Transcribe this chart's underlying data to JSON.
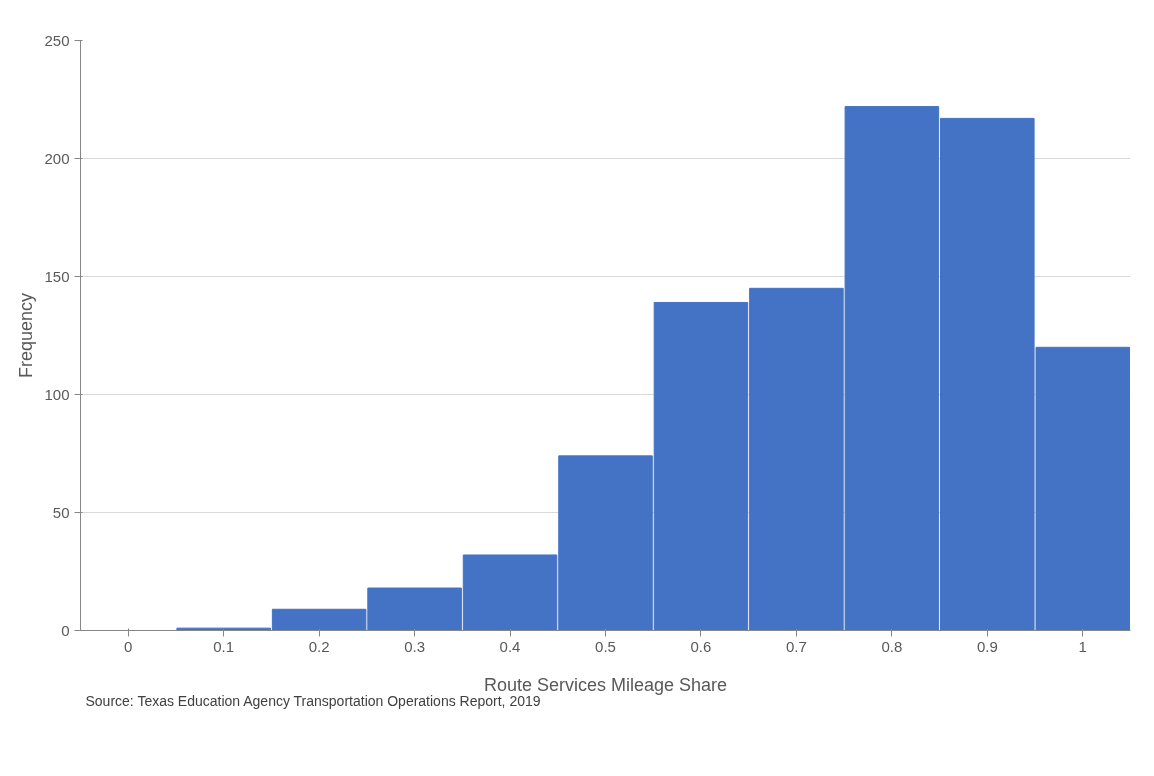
{
  "chart_data": {
    "type": "bar",
    "categories": [
      "0",
      "0.1",
      "0.2",
      "0.3",
      "0.4",
      "0.5",
      "0.6",
      "0.7",
      "0.8",
      "0.9",
      "1"
    ],
    "values": [
      0,
      1,
      9,
      18,
      32,
      74,
      139,
      145,
      222,
      217,
      120
    ],
    "color": "#4472c4",
    "xlabel": "Route Services Mileage Share",
    "ylabel": "Frequency",
    "ylim": [
      0,
      250
    ],
    "yticks": [
      0,
      50,
      100,
      150,
      200,
      250
    ],
    "grid": "y",
    "annotations": [
      "Source: Texas Education Agency  Transportation Operations Report, 2019"
    ]
  }
}
